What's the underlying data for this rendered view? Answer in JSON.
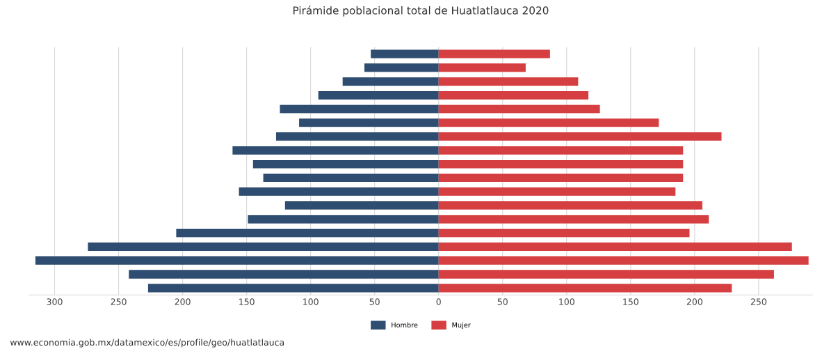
{
  "chart_data": {
    "type": "bar",
    "orientation": "horizontal",
    "stacked": true,
    "title": "Pirámide poblacional total de Huatlatlauca 2020",
    "categories": [
      null,
      null,
      null,
      null,
      null,
      null,
      null,
      null,
      null,
      null,
      null,
      null,
      null,
      null,
      null,
      null,
      null,
      null
    ],
    "series": [
      {
        "name": "Hombre",
        "color": "#2e4d70",
        "values": [
          -53,
          -58,
          -75,
          -94,
          -124,
          -109,
          -127,
          -161,
          -145,
          -137,
          -156,
          -120,
          -149,
          -205,
          -274,
          -315,
          -242,
          -227
        ]
      },
      {
        "name": "Mujer",
        "color": "#d63f41",
        "values": [
          87,
          68,
          109,
          117,
          126,
          172,
          221,
          191,
          191,
          191,
          185,
          206,
          211,
          196,
          276,
          289,
          262,
          229
        ]
      }
    ],
    "xlim": [
      -320,
      292
    ],
    "xticks": [
      {
        "value": -300,
        "label": "300"
      },
      {
        "value": -250,
        "label": "250"
      },
      {
        "value": -200,
        "label": "200"
      },
      {
        "value": -150,
        "label": "150"
      },
      {
        "value": -100,
        "label": "100"
      },
      {
        "value": -50,
        "label": "50"
      },
      0,
      50,
      100,
      150,
      200,
      250
    ],
    "grid": "x",
    "legend": "bottom",
    "annotations": [
      "www.economia.gob.mx/datamexico/es/profile/geo/huatlatlauca"
    ]
  }
}
